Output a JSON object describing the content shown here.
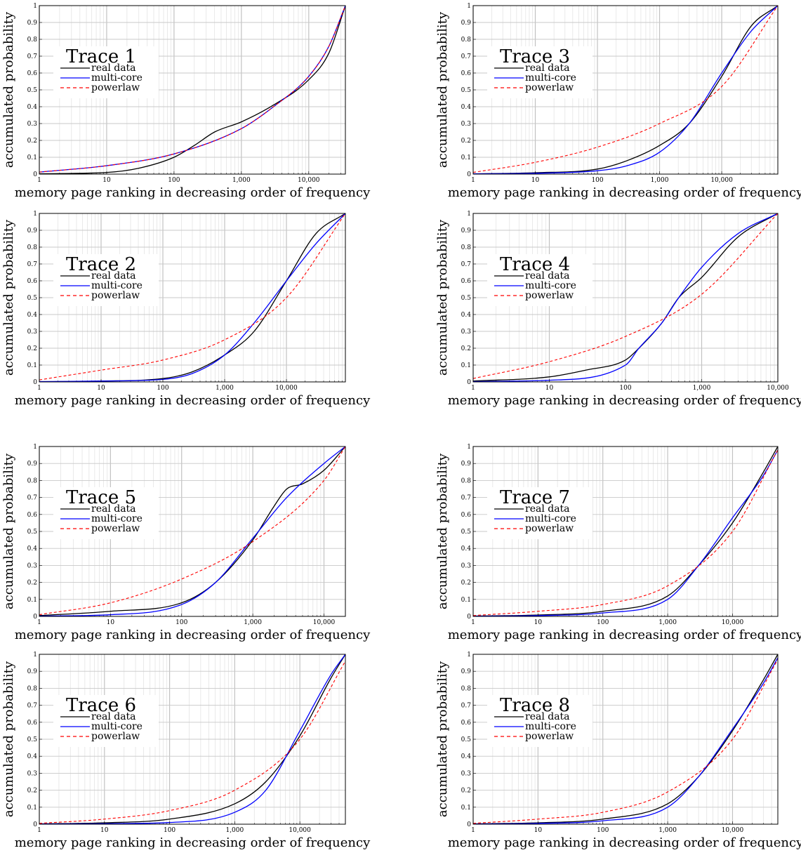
{
  "chart_data": [
    {
      "type": "line",
      "title": "Trace 1",
      "xlabel": "memory page ranking in decreasing order of frequency",
      "ylabel": "accumulated probability",
      "xscale": "log",
      "xlim": [
        1,
        35000
      ],
      "ylim": [
        0,
        1
      ],
      "xticks": [
        1,
        10,
        100,
        1000,
        10000
      ],
      "xtick_labels": [
        "1",
        "10",
        "100",
        "1,000",
        "10,000"
      ],
      "yticks": [
        0,
        0.1,
        0.2,
        0.3,
        0.4,
        0.5,
        0.6,
        0.7,
        0.8,
        0.9,
        1
      ],
      "ytick_labels": [
        "0",
        "0.1",
        "0.2",
        "0.3",
        "0.4",
        "0.5",
        "0.6",
        "0.7",
        "0.8",
        "0.9",
        "1"
      ],
      "grid": true,
      "legend_position": "upper-left",
      "series": [
        {
          "name": "real data",
          "color": "#000000",
          "dash": "solid",
          "x": [
            1,
            10,
            30,
            100,
            200,
            400,
            1000,
            3000,
            10000,
            20000,
            35000
          ],
          "y": [
            0.002,
            0.01,
            0.035,
            0.1,
            0.17,
            0.25,
            0.31,
            0.41,
            0.56,
            0.72,
            1.0
          ]
        },
        {
          "name": "multi-core",
          "color": "#0000ff",
          "dash": "solid",
          "x": [
            1,
            10,
            100,
            1000,
            3000,
            10000,
            20000,
            35000
          ],
          "y": [
            0.012,
            0.05,
            0.12,
            0.27,
            0.4,
            0.58,
            0.76,
            1.0
          ]
        },
        {
          "name": "powerlaw",
          "color": "#ff0000",
          "dash": "dashed",
          "x": [
            1,
            10,
            100,
            1000,
            3000,
            10000,
            20000,
            35000
          ],
          "y": [
            0.012,
            0.05,
            0.12,
            0.27,
            0.4,
            0.58,
            0.76,
            1.0
          ]
        }
      ]
    },
    {
      "type": "line",
      "title": "Trace 3",
      "xlabel": "memory page ranking in decreasing order of frequency",
      "ylabel": "accumulated probability",
      "xscale": "log",
      "xlim": [
        1,
        80000
      ],
      "ylim": [
        0,
        1
      ],
      "xticks": [
        1,
        10,
        100,
        1000,
        10000
      ],
      "xtick_labels": [
        "1",
        "10",
        "100",
        "1,000",
        "10,000"
      ],
      "yticks": [
        0,
        0.1,
        0.2,
        0.3,
        0.4,
        0.5,
        0.6,
        0.7,
        0.8,
        0.9,
        1
      ],
      "ytick_labels": [
        "0",
        "0.1",
        "0.2",
        "0.3",
        "0.4",
        "0.5",
        "0.6",
        "0.7",
        "0.8",
        "0.9",
        "1"
      ],
      "grid": true,
      "legend_position": "upper-left",
      "series": [
        {
          "name": "real data",
          "color": "#000000",
          "dash": "solid",
          "x": [
            1,
            10,
            100,
            300,
            1000,
            3000,
            10000,
            30000,
            80000
          ],
          "y": [
            0.001,
            0.008,
            0.03,
            0.08,
            0.17,
            0.3,
            0.58,
            0.88,
            1.0
          ]
        },
        {
          "name": "multi-core",
          "color": "#0000ff",
          "dash": "solid",
          "x": [
            1,
            10,
            100,
            300,
            1000,
            3000,
            10000,
            30000,
            80000
          ],
          "y": [
            0.002,
            0.005,
            0.02,
            0.05,
            0.13,
            0.3,
            0.6,
            0.85,
            1.0
          ]
        },
        {
          "name": "powerlaw",
          "color": "#ff0000",
          "dash": "dashed",
          "x": [
            1,
            10,
            100,
            1000,
            10000,
            80000
          ],
          "y": [
            0.01,
            0.07,
            0.16,
            0.3,
            0.52,
            1.0
          ]
        }
      ]
    },
    {
      "type": "line",
      "title": "Trace 2",
      "xlabel": "memory page ranking in decreasing order of frequency",
      "ylabel": "accumulated probability",
      "xscale": "log",
      "xlim": [
        1,
        90000
      ],
      "ylim": [
        0,
        1
      ],
      "xticks": [
        1,
        10,
        100,
        1000,
        10000
      ],
      "xtick_labels": [
        "1",
        "10",
        "100",
        "1,000",
        "10,000"
      ],
      "yticks": [
        0,
        0.1,
        0.2,
        0.3,
        0.4,
        0.5,
        0.6,
        0.7,
        0.8,
        0.9,
        1
      ],
      "ytick_labels": [
        "0",
        "0.1",
        "0.2",
        "0.3",
        "0.4",
        "0.5",
        "0.6",
        "0.7",
        "0.8",
        "0.9",
        "1"
      ],
      "grid": true,
      "legend_position": "upper-left",
      "series": [
        {
          "name": "real data",
          "color": "#000000",
          "dash": "solid",
          "x": [
            1,
            10,
            100,
            300,
            1000,
            3000,
            10000,
            30000,
            90000
          ],
          "y": [
            0.001,
            0.005,
            0.02,
            0.06,
            0.16,
            0.3,
            0.6,
            0.88,
            1.0
          ]
        },
        {
          "name": "multi-core",
          "color": "#0000ff",
          "dash": "solid",
          "x": [
            1,
            10,
            100,
            300,
            1000,
            3000,
            10000,
            30000,
            90000
          ],
          "y": [
            0.002,
            0.005,
            0.015,
            0.05,
            0.16,
            0.35,
            0.6,
            0.82,
            1.0
          ]
        },
        {
          "name": "powerlaw",
          "color": "#ff0000",
          "dash": "dashed",
          "x": [
            1,
            10,
            100,
            1000,
            10000,
            90000
          ],
          "y": [
            0.012,
            0.07,
            0.13,
            0.25,
            0.5,
            1.0
          ]
        }
      ]
    },
    {
      "type": "line",
      "title": "Trace 4",
      "xlabel": "memory page ranking in decreasing order of frequency",
      "ylabel": "accumulated probability",
      "xscale": "log",
      "xlim": [
        1,
        10000
      ],
      "ylim": [
        0,
        1
      ],
      "xticks": [
        1,
        10,
        100,
        1000,
        10000
      ],
      "xtick_labels": [
        "1",
        "10",
        "100",
        "1,000",
        "10,000"
      ],
      "yticks": [
        0,
        0.1,
        0.2,
        0.3,
        0.4,
        0.5,
        0.6,
        0.7,
        0.8,
        0.9,
        1
      ],
      "ytick_labels": [
        "0",
        "0.1",
        "0.2",
        "0.3",
        "0.4",
        "0.5",
        "0.6",
        "0.7",
        "0.8",
        "0.9",
        "1"
      ],
      "grid": true,
      "legend_position": "upper-left",
      "series": [
        {
          "name": "real data",
          "color": "#000000",
          "dash": "solid",
          "x": [
            1,
            10,
            30,
            100,
            150,
            300,
            500,
            1000,
            3000,
            10000
          ],
          "y": [
            0.005,
            0.03,
            0.07,
            0.13,
            0.2,
            0.35,
            0.5,
            0.62,
            0.86,
            1.0
          ]
        },
        {
          "name": "multi-core",
          "color": "#0000ff",
          "dash": "solid",
          "x": [
            1,
            10,
            100,
            150,
            300,
            500,
            1000,
            3000,
            10000
          ],
          "y": [
            0.002,
            0.01,
            0.1,
            0.2,
            0.35,
            0.5,
            0.68,
            0.88,
            1.0
          ]
        },
        {
          "name": "powerlaw",
          "color": "#ff0000",
          "dash": "dashed",
          "x": [
            1,
            10,
            100,
            1000,
            10000
          ],
          "y": [
            0.02,
            0.12,
            0.27,
            0.52,
            1.0
          ]
        }
      ]
    },
    {
      "type": "line",
      "title": "Trace 5",
      "xlabel": "memory page ranking in decreasing order of frequency",
      "ylabel": "accumulated probability",
      "xscale": "log",
      "xlim": [
        1,
        20000
      ],
      "ylim": [
        0,
        1
      ],
      "xticks": [
        1,
        10,
        100,
        1000,
        10000
      ],
      "xtick_labels": [
        "1",
        "10",
        "100",
        "1,000",
        "10,000"
      ],
      "yticks": [
        0,
        0.1,
        0.2,
        0.3,
        0.4,
        0.5,
        0.6,
        0.7,
        0.8,
        0.9,
        1
      ],
      "ytick_labels": [
        "0",
        "0.1",
        "0.2",
        "0.3",
        "0.4",
        "0.5",
        "0.6",
        "0.7",
        "0.8",
        "0.9",
        "1"
      ],
      "grid": true,
      "legend_position": "upper-left",
      "series": [
        {
          "name": "real data",
          "color": "#000000",
          "dash": "solid",
          "x": [
            1,
            10,
            100,
            300,
            1000,
            2000,
            3000,
            5000,
            10000,
            20000
          ],
          "y": [
            0.005,
            0.03,
            0.08,
            0.2,
            0.45,
            0.65,
            0.75,
            0.78,
            0.86,
            1.0
          ]
        },
        {
          "name": "multi-core",
          "color": "#0000ff",
          "dash": "solid",
          "x": [
            1,
            10,
            100,
            300,
            1000,
            3000,
            10000,
            20000
          ],
          "y": [
            0.002,
            0.01,
            0.07,
            0.2,
            0.46,
            0.7,
            0.9,
            1.0
          ]
        },
        {
          "name": "powerlaw",
          "color": "#ff0000",
          "dash": "dashed",
          "x": [
            1,
            10,
            100,
            1000,
            10000,
            20000
          ],
          "y": [
            0.01,
            0.08,
            0.22,
            0.44,
            0.8,
            1.0
          ]
        }
      ]
    },
    {
      "type": "line",
      "title": "Trace 7",
      "xlabel": "memory page ranking in decreasing order of frequency",
      "ylabel": "accumulated probability",
      "xscale": "log",
      "xlim": [
        1,
        50000
      ],
      "ylim": [
        0,
        1
      ],
      "xticks": [
        1,
        10,
        100,
        1000,
        10000
      ],
      "xtick_labels": [
        "1",
        "10",
        "100",
        "1,000",
        "10,000"
      ],
      "yticks": [
        0,
        0.1,
        0.2,
        0.3,
        0.4,
        0.5,
        0.6,
        0.7,
        0.8,
        0.9,
        1
      ],
      "ytick_labels": [
        "0",
        "0.1",
        "0.2",
        "0.3",
        "0.4",
        "0.5",
        "0.6",
        "0.7",
        "0.8",
        "0.9",
        "1"
      ],
      "grid": true,
      "legend_position": "upper-left",
      "series": [
        {
          "name": "real data",
          "color": "#000000",
          "dash": "solid",
          "x": [
            1,
            10,
            100,
            1000,
            3000,
            10000,
            30000,
            50000
          ],
          "y": [
            0.002,
            0.008,
            0.03,
            0.12,
            0.3,
            0.55,
            0.85,
            1.0
          ]
        },
        {
          "name": "multi-core",
          "color": "#0000ff",
          "dash": "solid",
          "x": [
            1,
            10,
            100,
            1000,
            3000,
            10000,
            30000,
            50000
          ],
          "y": [
            0.001,
            0.005,
            0.02,
            0.1,
            0.3,
            0.58,
            0.83,
            0.98
          ]
        },
        {
          "name": "powerlaw",
          "color": "#ff0000",
          "dash": "dashed",
          "x": [
            1,
            10,
            100,
            1000,
            10000,
            50000
          ],
          "y": [
            0.005,
            0.03,
            0.07,
            0.18,
            0.5,
            0.98
          ]
        }
      ]
    },
    {
      "type": "line",
      "title": "Trace 6",
      "xlabel": "memory page ranking in decreasing order of frequency",
      "ylabel": "accumulated probability",
      "xscale": "log",
      "xlim": [
        1,
        50000
      ],
      "ylim": [
        0,
        1
      ],
      "xticks": [
        1,
        10,
        100,
        1000,
        10000
      ],
      "xtick_labels": [
        "1",
        "10",
        "100",
        "1,000",
        "10,000"
      ],
      "yticks": [
        0,
        0.1,
        0.2,
        0.3,
        0.4,
        0.5,
        0.6,
        0.7,
        0.8,
        0.9,
        1
      ],
      "ytick_labels": [
        "0",
        "0.1",
        "0.2",
        "0.3",
        "0.4",
        "0.5",
        "0.6",
        "0.7",
        "0.8",
        "0.9",
        "1"
      ],
      "grid": true,
      "legend_position": "upper-left",
      "series": [
        {
          "name": "real data",
          "color": "#000000",
          "dash": "solid",
          "x": [
            1,
            10,
            100,
            1000,
            3000,
            10000,
            30000,
            50000
          ],
          "y": [
            0.002,
            0.008,
            0.03,
            0.12,
            0.25,
            0.52,
            0.86,
            1.0
          ]
        },
        {
          "name": "multi-core",
          "color": "#0000ff",
          "dash": "solid",
          "x": [
            1,
            10,
            100,
            1000,
            3000,
            10000,
            30000,
            50000
          ],
          "y": [
            0.001,
            0.003,
            0.01,
            0.07,
            0.2,
            0.55,
            0.88,
            1.0
          ]
        },
        {
          "name": "powerlaw",
          "color": "#ff0000",
          "dash": "dashed",
          "x": [
            1,
            10,
            100,
            1000,
            10000,
            50000
          ],
          "y": [
            0.005,
            0.03,
            0.08,
            0.2,
            0.5,
            0.96
          ]
        }
      ]
    },
    {
      "type": "line",
      "title": "Trace 8",
      "xlabel": "memory page ranking in decreasing order of frequency",
      "ylabel": "accumulated probability",
      "xscale": "log",
      "xlim": [
        1,
        50000
      ],
      "ylim": [
        0,
        1
      ],
      "xticks": [
        1,
        10,
        100,
        1000,
        10000
      ],
      "xtick_labels": [
        "1",
        "10",
        "100",
        "1,000",
        "10,000"
      ],
      "yticks": [
        0,
        0.1,
        0.2,
        0.3,
        0.4,
        0.5,
        0.6,
        0.7,
        0.8,
        0.9,
        1
      ],
      "ytick_labels": [
        "0",
        "0.1",
        "0.2",
        "0.3",
        "0.4",
        "0.5",
        "0.6",
        "0.7",
        "0.8",
        "0.9",
        "1"
      ],
      "grid": true,
      "legend_position": "upper-left",
      "series": [
        {
          "name": "real data",
          "color": "#000000",
          "dash": "solid",
          "x": [
            1,
            10,
            100,
            1000,
            3000,
            10000,
            30000,
            50000
          ],
          "y": [
            0.002,
            0.008,
            0.03,
            0.12,
            0.28,
            0.55,
            0.85,
            1.0
          ]
        },
        {
          "name": "multi-core",
          "color": "#0000ff",
          "dash": "solid",
          "x": [
            1,
            10,
            100,
            1000,
            3000,
            10000,
            30000,
            50000
          ],
          "y": [
            0.001,
            0.005,
            0.02,
            0.1,
            0.28,
            0.56,
            0.83,
            0.98
          ]
        },
        {
          "name": "powerlaw",
          "color": "#ff0000",
          "dash": "dashed",
          "x": [
            1,
            10,
            100,
            1000,
            10000,
            50000
          ],
          "y": [
            0.005,
            0.03,
            0.07,
            0.19,
            0.5,
            0.97
          ]
        }
      ]
    }
  ]
}
